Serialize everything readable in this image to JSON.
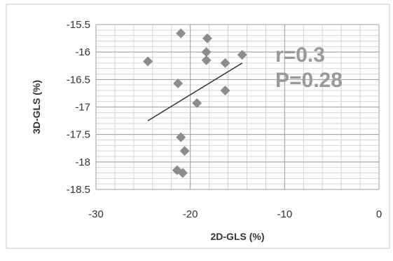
{
  "chart_data": {
    "type": "scatter",
    "xlabel": "2D-GLS (%)",
    "ylabel": "3D-GLS (%)",
    "xlim": [
      -30,
      0
    ],
    "ylim": [
      -18.5,
      -15.5
    ],
    "x_ticks": [
      "-30",
      "-20",
      "-10",
      "0"
    ],
    "y_ticks": [
      "-15.5",
      "-16",
      "-16.5",
      "-17",
      "-17.5",
      "-18",
      "-18.5"
    ],
    "grid": true,
    "points": [
      {
        "x": -24.5,
        "y": -16.17
      },
      {
        "x": -21.0,
        "y": -15.66
      },
      {
        "x": -18.2,
        "y": -15.75
      },
      {
        "x": -18.3,
        "y": -16.0
      },
      {
        "x": -18.3,
        "y": -16.15
      },
      {
        "x": -14.5,
        "y": -16.05
      },
      {
        "x": -16.3,
        "y": -16.2
      },
      {
        "x": -21.3,
        "y": -16.57
      },
      {
        "x": -16.3,
        "y": -16.7
      },
      {
        "x": -19.3,
        "y": -16.93
      },
      {
        "x": -21.0,
        "y": -17.55
      },
      {
        "x": -20.6,
        "y": -17.8
      },
      {
        "x": -21.4,
        "y": -18.15
      },
      {
        "x": -20.8,
        "y": -18.2
      }
    ],
    "trendline": {
      "x": [
        -24.5,
        -14.5
      ],
      "y": [
        -17.25,
        -16.2
      ]
    },
    "annotations": [
      "r=0.3",
      "P=0.28"
    ],
    "colors": {
      "marker": "#8c8c8c",
      "trendline": "#333333",
      "grid": "#bdbdbd",
      "annotation": "#9a9a9a"
    }
  }
}
